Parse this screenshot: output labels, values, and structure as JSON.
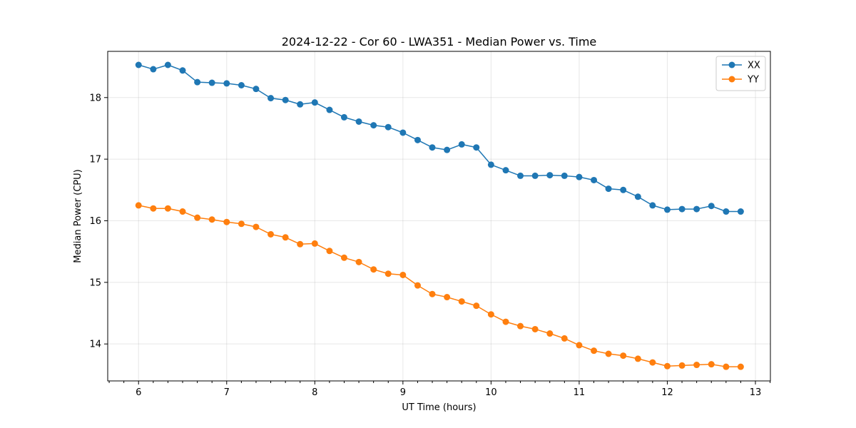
{
  "chart_data": {
    "type": "line",
    "title": "2024-12-22 - Cor 60 - LWA351 - Median Power vs. Time",
    "xlabel": "UT Time (hours)",
    "ylabel": "Median Power (CPU)",
    "xlim": [
      5.65,
      13.17
    ],
    "ylim": [
      13.4,
      18.75
    ],
    "xticks": [
      6,
      7,
      8,
      9,
      10,
      11,
      12,
      13
    ],
    "xtick_labels": [
      "6",
      "7",
      "8",
      "9",
      "10",
      "11",
      "12",
      "13"
    ],
    "yticks": [
      14,
      15,
      16,
      17,
      18
    ],
    "ytick_labels": [
      "14",
      "15",
      "16",
      "17",
      "18"
    ],
    "grid": true,
    "legend_position": "top-right",
    "x": [
      6.0,
      6.167,
      6.333,
      6.5,
      6.667,
      6.833,
      7.0,
      7.167,
      7.333,
      7.5,
      7.667,
      7.833,
      8.0,
      8.167,
      8.333,
      8.5,
      8.667,
      8.833,
      9.0,
      9.167,
      9.333,
      9.5,
      9.667,
      9.833,
      10.0,
      10.167,
      10.333,
      10.5,
      10.667,
      10.833,
      11.0,
      11.167,
      11.333,
      11.5,
      11.667,
      11.833,
      12.0,
      12.167,
      12.333,
      12.5,
      12.667,
      12.833
    ],
    "series": [
      {
        "name": "XX",
        "color": "#1f77b4",
        "values": [
          18.53,
          18.46,
          18.53,
          18.44,
          18.25,
          18.24,
          18.23,
          18.2,
          18.14,
          17.99,
          17.96,
          17.89,
          17.92,
          17.8,
          17.68,
          17.61,
          17.55,
          17.52,
          17.43,
          17.31,
          17.19,
          17.15,
          17.24,
          17.19,
          16.91,
          16.82,
          16.73,
          16.73,
          16.74,
          16.73,
          16.71,
          16.66,
          16.52,
          16.5,
          16.39,
          16.25,
          16.18,
          16.19,
          16.19,
          16.24,
          16.15,
          16.15
        ]
      },
      {
        "name": "YY",
        "color": "#ff7f0e",
        "values": [
          16.25,
          16.2,
          16.2,
          16.15,
          16.05,
          16.02,
          15.98,
          15.95,
          15.9,
          15.78,
          15.73,
          15.62,
          15.63,
          15.51,
          15.4,
          15.33,
          15.21,
          15.14,
          15.12,
          14.95,
          14.81,
          14.76,
          14.69,
          14.62,
          14.48,
          14.36,
          14.29,
          14.24,
          14.17,
          14.09,
          13.98,
          13.89,
          13.84,
          13.81,
          13.76,
          13.7,
          13.64,
          13.65,
          13.66,
          13.67,
          13.63,
          13.63
        ]
      }
    ]
  }
}
